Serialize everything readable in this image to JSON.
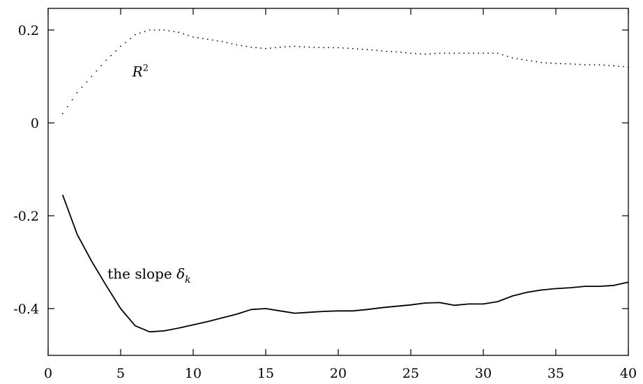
{
  "chart_data": {
    "type": "line",
    "title": "",
    "xlabel": "",
    "ylabel": "",
    "xlim": [
      0,
      40
    ],
    "ylim": [
      -0.5,
      0.25
    ],
    "xticks": [
      0,
      5,
      10,
      15,
      20,
      25,
      30,
      35,
      40
    ],
    "xtick_labels": [
      "0",
      "5",
      "10",
      "15",
      "20",
      "25",
      "30",
      "35",
      "40"
    ],
    "yticks": [
      0.2,
      0,
      -0.2,
      -0.4
    ],
    "ytick_labels": [
      "0.2",
      "0",
      "-0.2",
      "-0.4"
    ],
    "grid": false,
    "legend": "none",
    "x": [
      1,
      2,
      3,
      4,
      5,
      6,
      7,
      8,
      9,
      10,
      11,
      12,
      13,
      14,
      15,
      16,
      17,
      18,
      19,
      20,
      21,
      22,
      23,
      24,
      25,
      26,
      27,
      28,
      29,
      30,
      31,
      32,
      33,
      34,
      35,
      36,
      37,
      38,
      39,
      40
    ],
    "series": [
      {
        "label": {
          "main": "R",
          "sup": "2"
        },
        "style": "dotted",
        "color": "#000000",
        "values": [
          0.02,
          0.065,
          0.1,
          0.135,
          0.165,
          0.19,
          0.2,
          0.2,
          0.195,
          0.185,
          0.18,
          0.175,
          0.168,
          0.163,
          0.16,
          0.163,
          0.165,
          0.163,
          0.162,
          0.162,
          0.16,
          0.158,
          0.155,
          0.153,
          0.15,
          0.148,
          0.15,
          0.15,
          0.15,
          0.15,
          0.15,
          0.14,
          0.135,
          0.13,
          0.128,
          0.127,
          0.125,
          0.125,
          0.123,
          0.12
        ]
      },
      {
        "label": {
          "main": "the slope ",
          "sym": "δ",
          "sub": "k"
        },
        "style": "solid",
        "color": "#000000",
        "values": [
          -0.155,
          -0.24,
          -0.298,
          -0.35,
          -0.4,
          -0.437,
          -0.45,
          -0.448,
          -0.442,
          -0.435,
          -0.428,
          -0.42,
          -0.412,
          -0.402,
          -0.4,
          -0.405,
          -0.41,
          -0.408,
          -0.406,
          -0.405,
          -0.405,
          -0.402,
          -0.398,
          -0.395,
          -0.392,
          -0.388,
          -0.387,
          -0.393,
          -0.39,
          -0.39,
          -0.385,
          -0.373,
          -0.365,
          -0.36,
          -0.357,
          -0.355,
          -0.352,
          -0.352,
          -0.35,
          -0.343
        ]
      }
    ],
    "annotations": [
      {
        "series": 0,
        "at": [
          5.8,
          0.1
        ]
      },
      {
        "series": 1,
        "at": [
          4.1,
          -0.335
        ]
      }
    ]
  }
}
